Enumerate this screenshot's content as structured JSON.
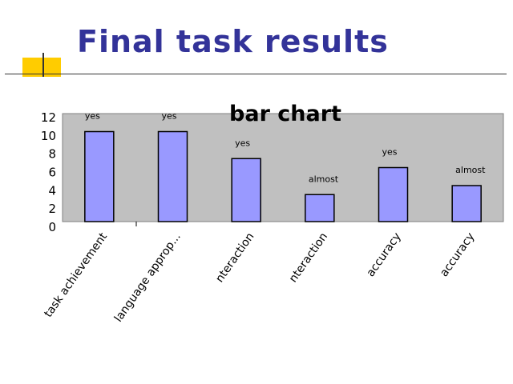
{
  "slide": {
    "title": "Final task results"
  },
  "colors": {
    "title": "#333399",
    "plot_background": "#c0c0c0",
    "bar_fill": "#9999ff",
    "bar_stroke": "#000000",
    "decoration": "#ffcc00"
  },
  "chart_data": {
    "type": "bar",
    "title": "bar chart",
    "xlabel": "",
    "ylabel": "",
    "ylim": [
      0,
      12
    ],
    "yticks": [
      0,
      2,
      4,
      6,
      8,
      10,
      12
    ],
    "grid": false,
    "legend": "none",
    "categories": [
      "task achievement",
      "language approp...",
      "interaction",
      "interaction",
      "accuracy",
      "accuracy"
    ],
    "category_labels_visible": [
      "task achievement",
      "language approp...",
      "nteraction",
      "nteraction",
      "accuracy",
      "accuracy"
    ],
    "values": [
      10,
      10,
      7,
      3,
      6,
      4
    ],
    "data_labels": [
      "yes",
      "yes",
      "yes",
      "almost",
      "yes",
      "almost"
    ]
  }
}
